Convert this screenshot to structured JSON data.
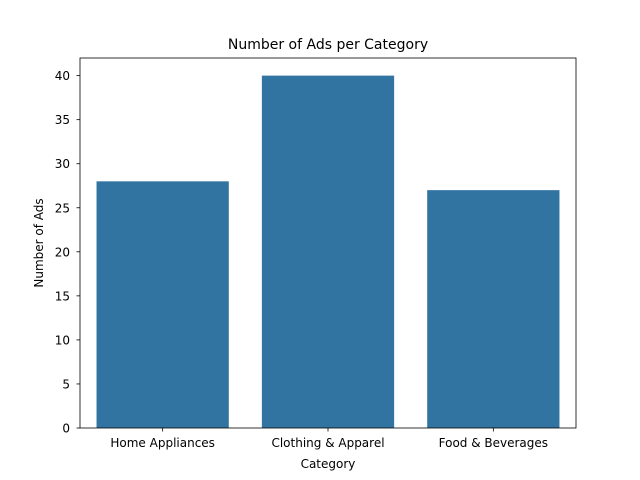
{
  "chart_data": {
    "type": "bar",
    "title": "Number of Ads per Category",
    "xlabel": "Category",
    "ylabel": "Number of Ads",
    "categories": [
      "Home Appliances",
      "Clothing & Apparel",
      "Food & Beverages"
    ],
    "values": [
      28,
      40,
      27
    ],
    "ylim": [
      0,
      42
    ],
    "yticks": [
      0,
      5,
      10,
      15,
      20,
      25,
      30,
      35,
      40
    ],
    "grid": false,
    "legend": "none",
    "bar_color": "#3274a1"
  }
}
